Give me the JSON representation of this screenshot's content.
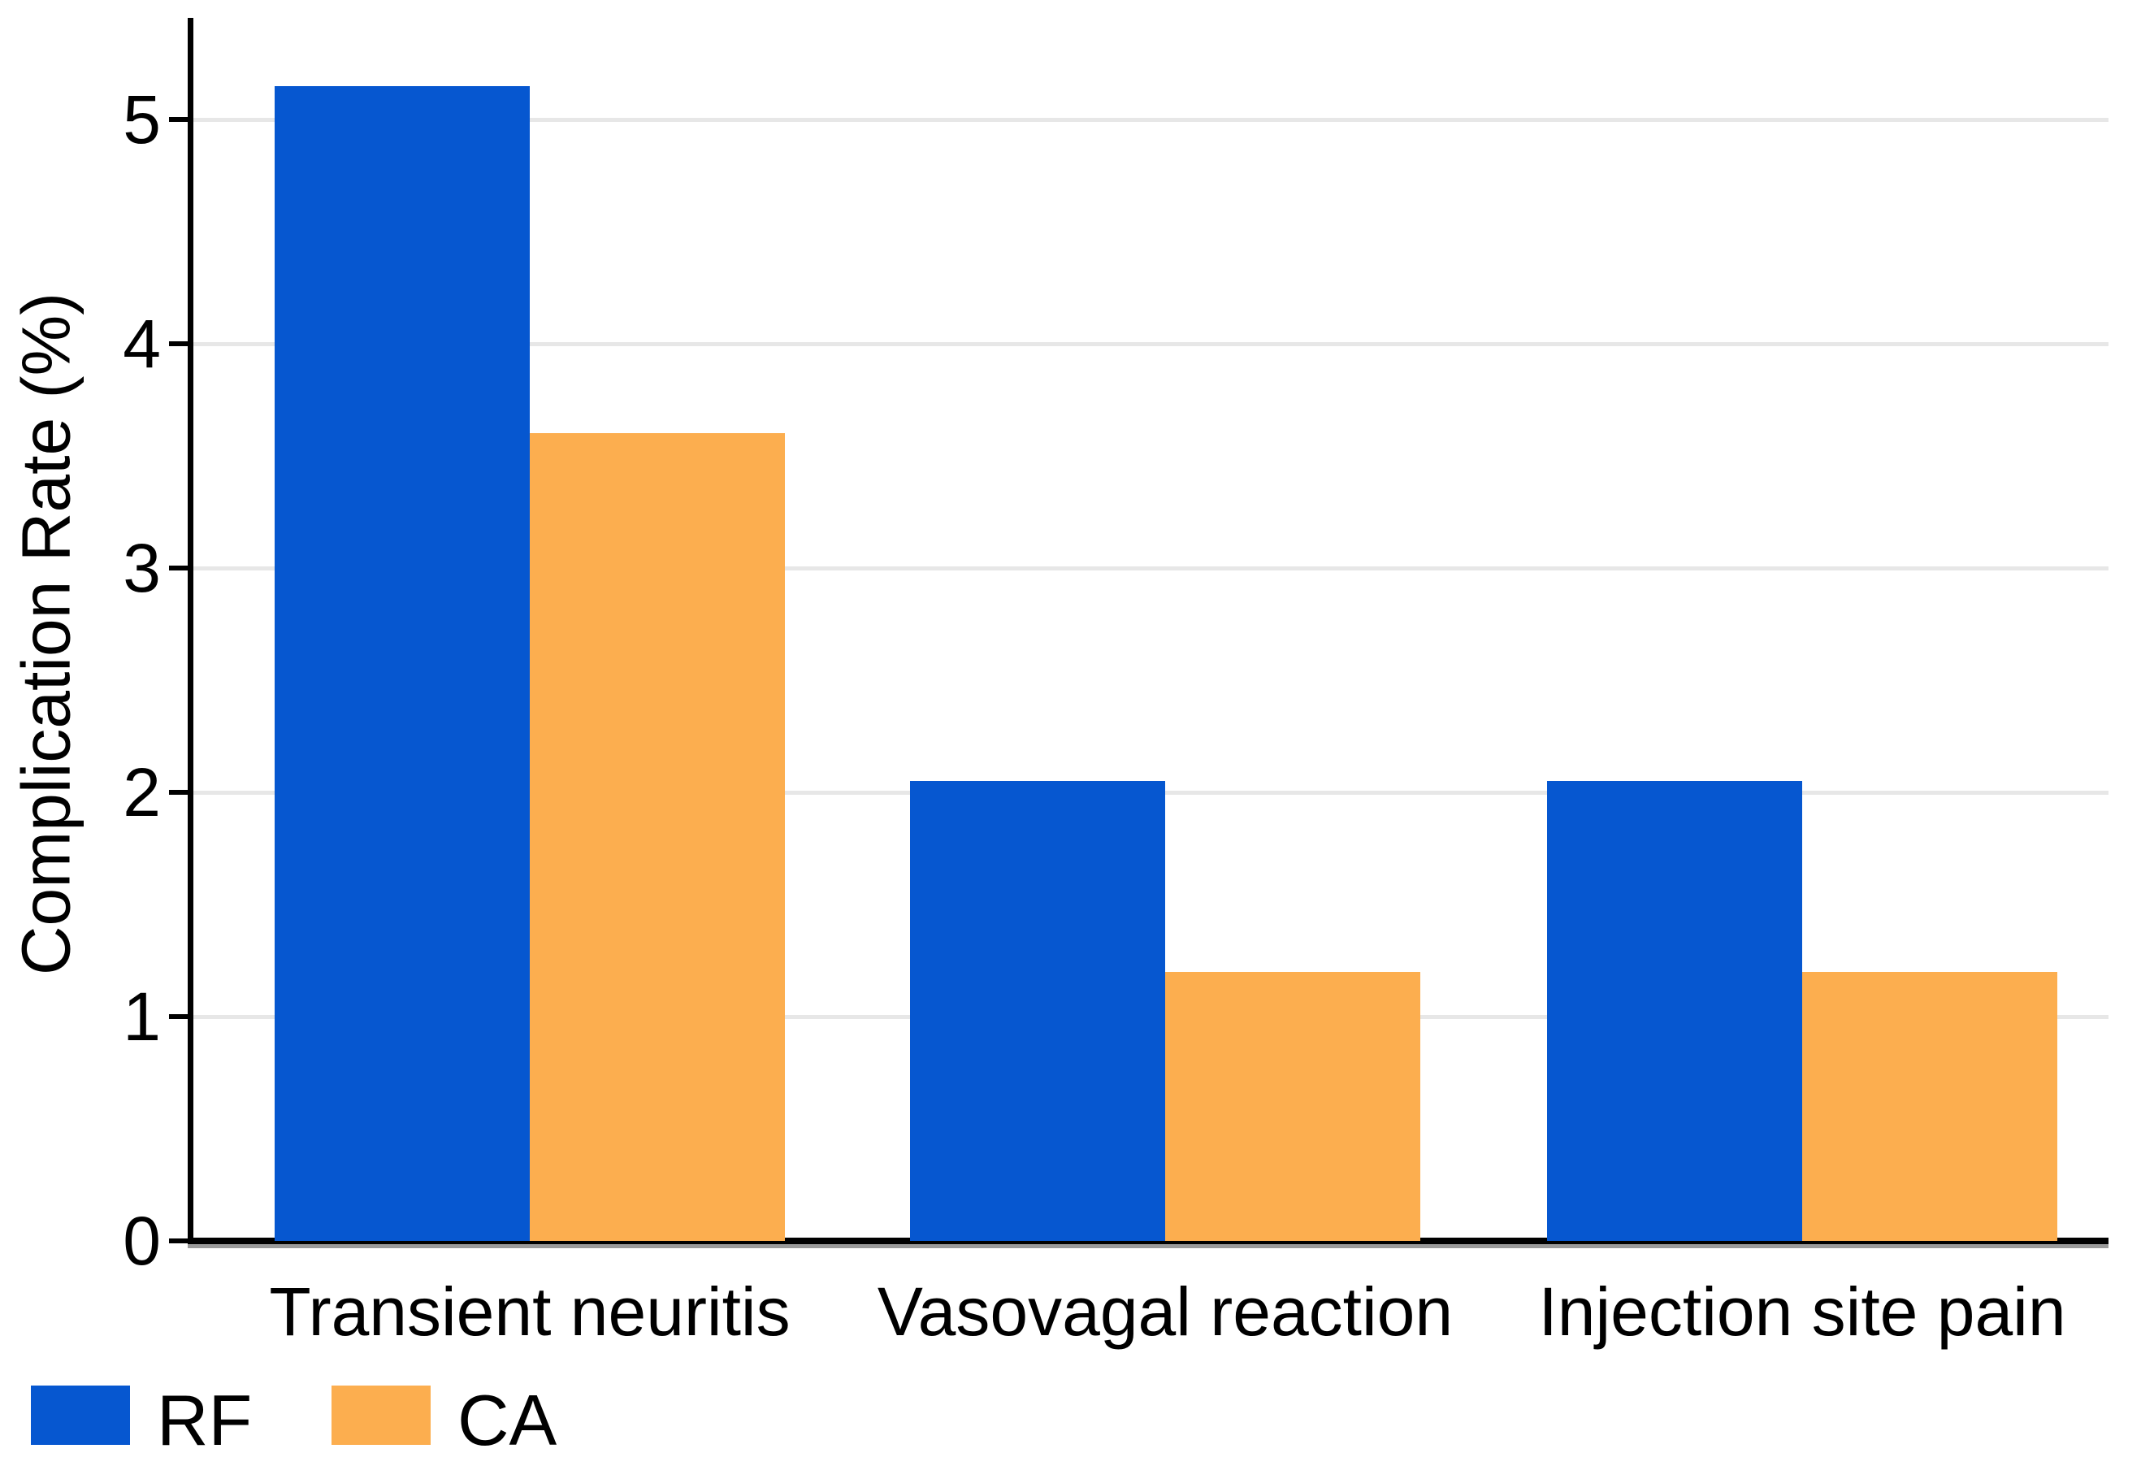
{
  "chart_data": {
    "type": "bar",
    "title": "",
    "xlabel": "",
    "ylabel": "Complication Rate (%)",
    "categories": [
      "Transient neuritis",
      "Vasovagal reaction",
      "Injection site pain"
    ],
    "series": [
      {
        "name": "RF",
        "color": "#0657D0",
        "values": [
          5.15,
          2.05,
          2.05
        ]
      },
      {
        "name": "CA",
        "color": "#FCAE4F",
        "values": [
          3.6,
          1.2,
          1.2
        ]
      }
    ],
    "yticks": [
      0,
      1,
      2,
      3,
      4,
      5
    ],
    "ylim": [
      0,
      5.45
    ],
    "grid": "horizontal",
    "gridline_color": "#E7E7E7",
    "axis_color": "#000000",
    "legend_position": "bottom-left"
  }
}
